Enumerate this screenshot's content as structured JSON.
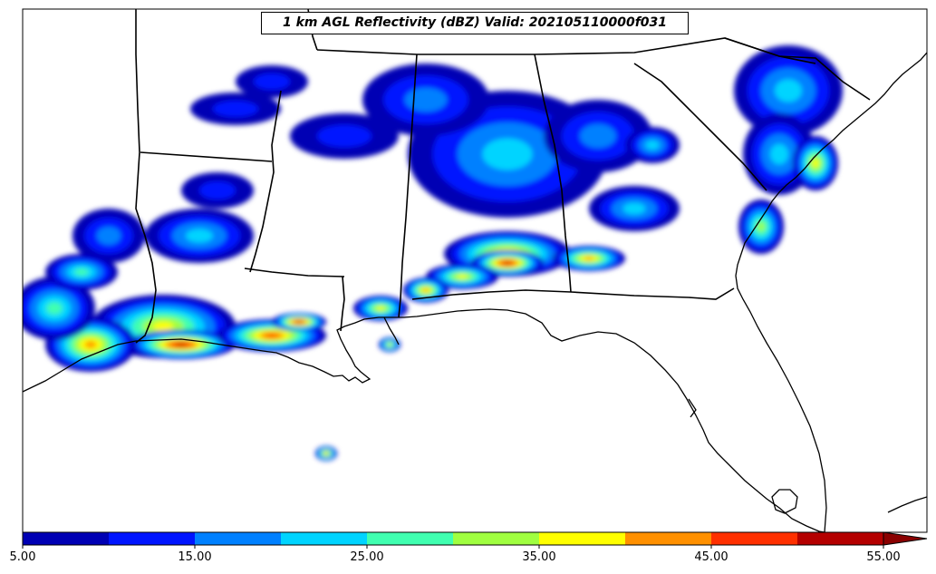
{
  "map": {
    "title": "1 km AGL Reflectivity (dBZ) Valid: 202105110000f031",
    "variable": "reflectivity",
    "units": "dBZ",
    "level": "1 km AGL",
    "valid": "202105110000f031",
    "region": "Southeastern United States / Gulf Coast"
  },
  "colorbar": {
    "tick_labels": [
      "5.00",
      "15.00",
      "25.00",
      "35.00",
      "45.00",
      "55.00"
    ],
    "min": 5,
    "max": 55,
    "step": 5,
    "extend": "max",
    "colors": [
      "#0000b4",
      "#0014ff",
      "#0080ff",
      "#00d4ff",
      "#40ffb0",
      "#a0ff40",
      "#ffff00",
      "#ff9000",
      "#ff3000",
      "#b40000"
    ],
    "over_color": "#8a0000"
  }
}
